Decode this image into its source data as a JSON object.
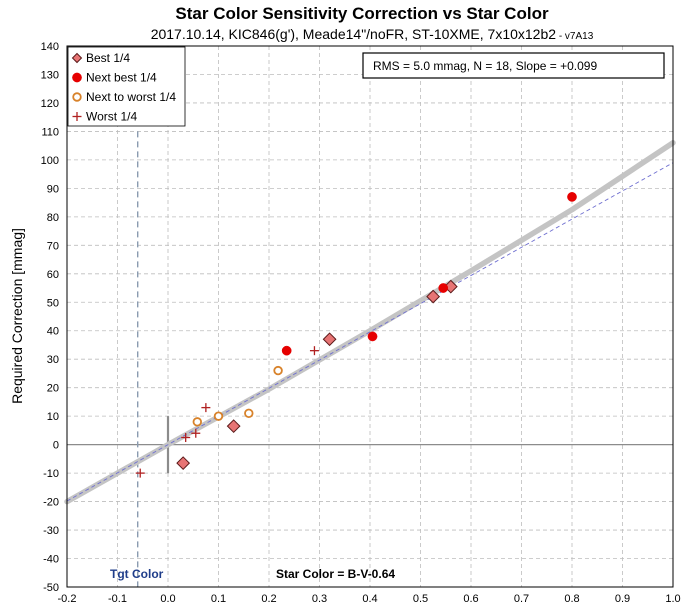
{
  "chart_data": {
    "type": "scatter",
    "title": "Star Color Sensitivity Correction vs Star Color",
    "subtitle": "2017.10.14, KIC846(g'), Meade14\"/noFR, ST-10XME, 7x10x12b2",
    "version": " - v7A13",
    "ylabel": "Required Correction [mmag]",
    "xlabel": "",
    "xlim": [
      -0.2,
      1.0
    ],
    "ylim": [
      -50,
      140
    ],
    "xticks": [
      -0.2,
      -0.1,
      0.0,
      0.1,
      0.2,
      0.3,
      0.4,
      0.5,
      0.6,
      0.7,
      0.8,
      0.9,
      1.0
    ],
    "xtick_labels": [
      "-0.2",
      "-0.1",
      "0.0",
      "0.1",
      "0.2",
      "0.3",
      "0.4",
      "0.5",
      "0.6",
      "0.7",
      "0.8",
      "0.9",
      "1.0"
    ],
    "yticks": [
      -50,
      -40,
      -30,
      -20,
      -10,
      0,
      10,
      20,
      30,
      40,
      50,
      60,
      70,
      80,
      90,
      100,
      110,
      120,
      130,
      140
    ],
    "grid": true,
    "legend_position": "top-left",
    "stats_box": "RMS = 5.0 mmag, N = 18, Slope = +0.099",
    "target_color_label": "Tgt Color",
    "target_color_x": -0.06,
    "star_color_label": "Star Color = B-V-0.64",
    "colors": {
      "best": "#e77474",
      "best_edge": "#5a1a1a",
      "next_best": "#e60000",
      "next_to_worst": "#d8822a",
      "worst": "#b02020",
      "fit": "#c4c4c4",
      "linear": "#6f6fd0",
      "grid": "#bdbdbd",
      "target": "#8a9bb0"
    },
    "series": [
      {
        "name": "Best 1/4",
        "marker": "diamond",
        "x": [
          0.03,
          0.13,
          0.32,
          0.525,
          0.56
        ],
        "y": [
          -6.5,
          6.5,
          37.0,
          52.0,
          55.5
        ]
      },
      {
        "name": "Next best 1/4",
        "marker": "filled-circle",
        "x": [
          0.235,
          0.405,
          0.545,
          0.8
        ],
        "y": [
          33.0,
          38.0,
          55.0,
          87.0
        ]
      },
      {
        "name": "Next to worst 1/4",
        "marker": "open-circle",
        "x": [
          0.058,
          0.1,
          0.16,
          0.218
        ],
        "y": [
          8.0,
          10.0,
          11.0,
          26.0
        ]
      },
      {
        "name": "Worst 1/4",
        "marker": "plus",
        "x": [
          -0.055,
          0.035,
          0.055,
          0.075,
          0.29
        ],
        "y": [
          -10.0,
          2.5,
          4.0,
          13.0,
          33.0
        ]
      }
    ],
    "fit_curve": {
      "x": [
        -0.2,
        0.0,
        0.2,
        0.4,
        0.6,
        0.8,
        1.0
      ],
      "y": [
        -20.0,
        0.0,
        19.5,
        40.0,
        61.0,
        82.5,
        106.0
      ]
    },
    "linear_fit": {
      "x": [
        -0.2,
        1.0
      ],
      "y": [
        -19.8,
        99.0
      ]
    }
  }
}
